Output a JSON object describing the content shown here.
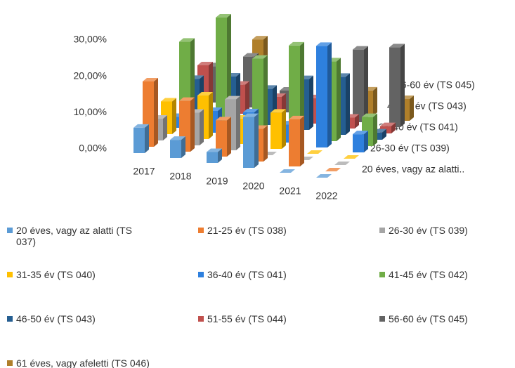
{
  "chart_data": {
    "type": "bar3d",
    "categories": [
      "2017",
      "2018",
      "2019",
      "2020",
      "2021",
      "2022"
    ],
    "depth_labels": [
      "20 éves, vagy az alatti..",
      null,
      "26-30 év (TS 039)",
      null,
      "36-40 év (TS 041)",
      null,
      "46-50 év (TS 043)",
      null,
      "56-60 év (TS 045)",
      null
    ],
    "ylim": [
      0,
      30
    ],
    "yticks": [
      {
        "value": 0,
        "label": "0,00%"
      },
      {
        "value": 10,
        "label": "10,00%"
      },
      {
        "value": 20,
        "label": "20,00%"
      },
      {
        "value": 30,
        "label": "30,00%"
      }
    ],
    "legend": "bottom",
    "series": [
      {
        "name": "20 éves, vagy az alatti (TS 037)",
        "color": "#5b9bd5",
        "values": [
          7,
          5,
          3,
          14,
          0,
          0
        ]
      },
      {
        "name": "21-25 év (TS 038)",
        "color": "#ed7d31",
        "values": [
          18,
          14,
          10,
          9,
          13,
          0
        ]
      },
      {
        "name": "26-30 év (TS 039)",
        "color": "#a5a5a5",
        "values": [
          6,
          9,
          14,
          0,
          0,
          0
        ]
      },
      {
        "name": "31-35 év (TS 040)",
        "color": "#ffc000",
        "values": [
          9,
          12,
          7,
          10,
          0,
          0
        ]
      },
      {
        "name": "36-40 év (TS 041)",
        "color": "#2e80de",
        "values": [
          3,
          6,
          7,
          5,
          28,
          5
        ]
      },
      {
        "name": "41-45 év (TS 042)",
        "color": "#70ad47",
        "values": [
          22,
          30,
          20,
          25,
          22,
          8
        ]
      },
      {
        "name": "46-50 év (TS 043)",
        "color": "#255e91",
        "values": [
          10,
          12,
          10,
          14,
          16,
          2
        ]
      },
      {
        "name": "51-55 év (TS 044)",
        "color": "#c0504d",
        "values": [
          12,
          8,
          6,
          7,
          3,
          2
        ]
      },
      {
        "name": "56-60 év (TS 045)",
        "color": "#636363",
        "values": [
          10,
          14,
          6,
          12,
          20,
          22
        ]
      },
      {
        "name": "61 éves, vagy afeletti (TS 046)",
        "color": "#b07f2a",
        "values": [
          12,
          17,
          10,
          11,
          7,
          6
        ]
      }
    ]
  }
}
